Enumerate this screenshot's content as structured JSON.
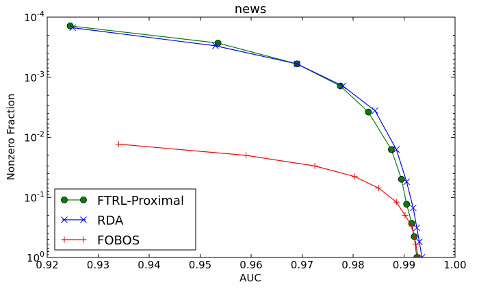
{
  "chart_data": {
    "type": "line",
    "title": "news",
    "xlabel": "AUC",
    "ylabel": "Nonzero Fraction",
    "xlim": [
      0.92,
      1.0
    ],
    "ylim": [
      0.0001,
      1.0
    ],
    "yscale": "log",
    "y_inverted": true,
    "x_ticks": [
      "0.92",
      "0.93",
      "0.94",
      "0.95",
      "0.96",
      "0.97",
      "0.98",
      "0.99",
      "1.00"
    ],
    "y_ticks": [
      {
        "base": "10",
        "exp": "-4",
        "value": 0.0001
      },
      {
        "base": "10",
        "exp": "-3",
        "value": 0.001
      },
      {
        "base": "10",
        "exp": "-2",
        "value": 0.01
      },
      {
        "base": "10",
        "exp": "-1",
        "value": 0.1
      },
      {
        "base": "10",
        "exp": "0",
        "value": 1.0
      }
    ],
    "grid": false,
    "legend_position": "bottom-left",
    "series": [
      {
        "name": "FTRL-Proximal",
        "color": "#008000",
        "marker": "circle",
        "x": [
          0.9245,
          0.9535,
          0.969,
          0.9775,
          0.983,
          0.9875,
          0.9895,
          0.9905,
          0.9915,
          0.992,
          0.9925
        ],
        "y": [
          0.00014,
          0.00027,
          0.0006,
          0.0014,
          0.0038,
          0.016,
          0.05,
          0.13,
          0.27,
          0.45,
          1.0
        ]
      },
      {
        "name": "RDA",
        "color": "#0000ff",
        "marker": "x",
        "x": [
          0.925,
          0.953,
          0.969,
          0.978,
          0.9843,
          0.9885,
          0.9905,
          0.9918,
          0.9925,
          0.993,
          0.9935
        ],
        "y": [
          0.00015,
          0.0003,
          0.0006,
          0.0014,
          0.0036,
          0.016,
          0.055,
          0.15,
          0.32,
          0.55,
          1.0
        ]
      },
      {
        "name": "FOBOS",
        "color": "#ff0000",
        "marker": "plus",
        "x": [
          0.934,
          0.959,
          0.9725,
          0.9803,
          0.985,
          0.9885,
          0.9902,
          0.9915,
          0.9923,
          0.9928
        ],
        "y": [
          0.013,
          0.02,
          0.03,
          0.045,
          0.07,
          0.12,
          0.2,
          0.3,
          0.6,
          1.0
        ]
      }
    ]
  }
}
